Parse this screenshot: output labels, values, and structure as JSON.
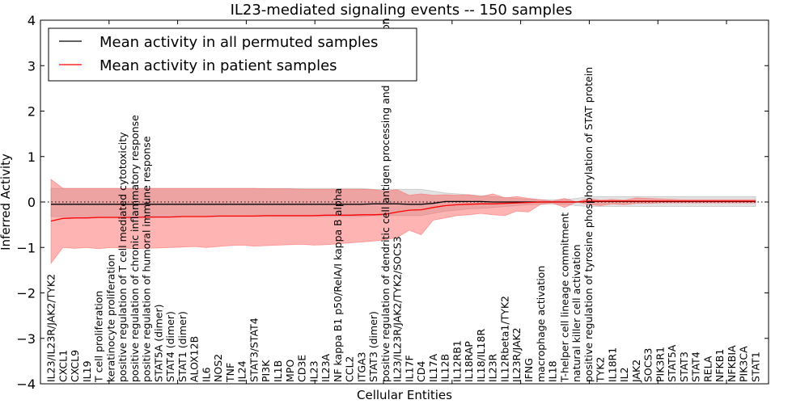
{
  "chart_data": {
    "type": "line",
    "title": "IL23-mediated signaling events -- 150 samples",
    "xlabel": "Cellular Entities",
    "ylabel": "Inferred Activity",
    "ylim": [
      -4,
      4
    ],
    "yticks": [
      -4,
      -3,
      -2,
      -1,
      0,
      1,
      2,
      3,
      4
    ],
    "legend": {
      "placement": "top-left",
      "entries": [
        {
          "label": "Mean activity in all permuted samples",
          "color": "#000000"
        },
        {
          "label": "Mean activity in patient samples",
          "color": "#ff0000"
        }
      ]
    },
    "categories": [
      "IL23/IL23R/JAK2/TYK2",
      "CXCL1",
      "CXCL9",
      "IL19",
      "T cell proliferation",
      "keratinocyte proliferation",
      "positive regulation of T cell mediated cytotoxicity",
      "positive regulation of chronic inflammatory response",
      "positive regulation of humoral immune response",
      "STAT5A (dimer)",
      "STAT4 (dimer)",
      "STAT1 (dimer)",
      "ALOX12B",
      "IL6",
      "NOS2",
      "TNF",
      "IL24",
      "STAT3/STAT4",
      "PI3K",
      "IL1B",
      "MPO",
      "CD3E",
      "IL23",
      "IL23A",
      "NF kappa B1 p50/RelA/I kappa B alpha",
      "CCL2",
      "ITGA3",
      "STAT3 (dimer)",
      "positive regulation of dendritic cell antigen processing and presentation",
      "IL23/IL23R/JAK2/TYK2/SOCS3",
      "IL17F",
      "CD4",
      "IL17A",
      "IL12B",
      "IL12RB1",
      "IL18RAP",
      "IL18/IL18R",
      "IL23R",
      "IL12Rbeta1/TYK2",
      "IL23R/JAK2",
      "IFNG",
      "macrophage activation",
      "IL18",
      "T-helper cell lineage commitment",
      "natural killer cell activation",
      "positive regulation of tyrosine phosphorylation of STAT protein",
      "TYK2",
      "IL18R1",
      "IL2",
      "JAK2",
      "SOCS3",
      "PIK3R1",
      "STAT5A",
      "STAT3",
      "STAT4",
      "RELA",
      "NFKB1",
      "NFKBIA",
      "PIK3CA",
      "STAT1"
    ],
    "series": [
      {
        "name": "Mean activity in all permuted samples",
        "color": "#000000",
        "values": [
          -0.05,
          -0.05,
          -0.05,
          -0.05,
          -0.05,
          -0.05,
          -0.05,
          -0.05,
          -0.05,
          -0.05,
          -0.05,
          -0.05,
          -0.05,
          -0.05,
          -0.05,
          -0.05,
          -0.05,
          -0.05,
          -0.05,
          -0.05,
          -0.05,
          -0.05,
          -0.05,
          -0.05,
          -0.05,
          -0.05,
          -0.05,
          -0.04,
          -0.04,
          -0.04,
          -0.05,
          -0.05,
          -0.03,
          0.01,
          0.01,
          0.01,
          0.01,
          0.0,
          0.0,
          0.0,
          0.0,
          0.0,
          0.0,
          0.0,
          0.0,
          0.01,
          0.01,
          0.01,
          0.01,
          0.01,
          0.01,
          0.01,
          0.01,
          0.01,
          0.01,
          0.01,
          0.01,
          0.01,
          0.01,
          0.01
        ],
        "band_lower": [
          -0.32,
          -0.32,
          -0.32,
          -0.32,
          -0.32,
          -0.32,
          -0.32,
          -0.32,
          -0.32,
          -0.32,
          -0.32,
          -0.32,
          -0.32,
          -0.32,
          -0.32,
          -0.32,
          -0.32,
          -0.32,
          -0.32,
          -0.32,
          -0.32,
          -0.32,
          -0.32,
          -0.32,
          -0.32,
          -0.32,
          -0.32,
          -0.3,
          -0.3,
          -0.3,
          -0.3,
          -0.3,
          -0.25,
          -0.2,
          -0.18,
          -0.15,
          -0.14,
          -0.12,
          -0.1,
          -0.08,
          -0.06,
          -0.05,
          -0.05,
          -0.05,
          -0.08,
          -0.1,
          -0.1,
          -0.1,
          -0.1,
          -0.1,
          -0.1,
          -0.1,
          -0.1,
          -0.1,
          -0.1,
          -0.1,
          -0.1,
          -0.1,
          -0.1,
          -0.1
        ],
        "band_upper": [
          0.3,
          0.3,
          0.3,
          0.3,
          0.3,
          0.3,
          0.3,
          0.3,
          0.3,
          0.3,
          0.3,
          0.3,
          0.3,
          0.3,
          0.3,
          0.3,
          0.3,
          0.3,
          0.3,
          0.3,
          0.3,
          0.3,
          0.3,
          0.3,
          0.3,
          0.3,
          0.3,
          0.28,
          0.28,
          0.28,
          0.28,
          0.28,
          0.24,
          0.2,
          0.18,
          0.16,
          0.14,
          0.12,
          0.1,
          0.08,
          0.06,
          0.05,
          0.05,
          0.05,
          0.08,
          0.12,
          0.12,
          0.12,
          0.12,
          0.12,
          0.12,
          0.12,
          0.12,
          0.12,
          0.12,
          0.12,
          0.12,
          0.12,
          0.12,
          0.12
        ]
      },
      {
        "name": "Mean activity in patient samples",
        "color": "#ff0000",
        "values": [
          -0.42,
          -0.36,
          -0.35,
          -0.35,
          -0.34,
          -0.34,
          -0.34,
          -0.34,
          -0.33,
          -0.33,
          -0.33,
          -0.32,
          -0.32,
          -0.32,
          -0.31,
          -0.31,
          -0.31,
          -0.31,
          -0.3,
          -0.3,
          -0.3,
          -0.3,
          -0.3,
          -0.29,
          -0.29,
          -0.29,
          -0.28,
          -0.28,
          -0.27,
          -0.22,
          -0.18,
          -0.17,
          -0.12,
          -0.08,
          -0.06,
          -0.05,
          -0.04,
          -0.04,
          -0.03,
          -0.02,
          -0.01,
          0.0,
          0.0,
          0.0,
          0.0,
          0.02,
          0.02,
          0.02,
          0.02,
          0.02,
          0.02,
          0.02,
          0.02,
          0.02,
          0.02,
          0.02,
          0.02,
          0.02,
          0.02,
          0.02
        ],
        "band_lower": [
          -1.35,
          -1.0,
          -1.02,
          -1.0,
          -1.03,
          -1.0,
          -1.01,
          -1.03,
          -1.02,
          -1.01,
          -1.0,
          -0.99,
          -0.98,
          -1.0,
          -0.98,
          -0.96,
          -0.95,
          -0.97,
          -0.96,
          -0.95,
          -0.94,
          -0.93,
          -0.95,
          -0.94,
          -0.92,
          -0.9,
          -0.88,
          -0.86,
          -0.83,
          -0.78,
          -0.62,
          -0.72,
          -0.4,
          -0.35,
          -0.3,
          -0.28,
          -0.25,
          -0.28,
          -0.3,
          -0.2,
          -0.22,
          -0.05,
          -0.02,
          -0.12,
          0.0,
          -0.05,
          -0.08,
          -0.04,
          -0.06,
          -0.03,
          -0.03,
          -0.02,
          -0.02,
          -0.02,
          -0.02,
          -0.02,
          -0.02,
          -0.02,
          -0.02,
          -0.02
        ],
        "band_upper": [
          0.5,
          0.3,
          0.3,
          0.3,
          0.3,
          0.3,
          0.3,
          0.3,
          0.3,
          0.3,
          0.3,
          0.3,
          0.3,
          0.3,
          0.3,
          0.3,
          0.3,
          0.3,
          0.29,
          0.29,
          0.29,
          0.28,
          0.28,
          0.28,
          0.28,
          0.28,
          0.28,
          0.27,
          0.24,
          0.27,
          0.15,
          0.18,
          0.15,
          0.16,
          0.15,
          0.16,
          0.12,
          0.18,
          0.09,
          0.12,
          0.08,
          0.05,
          0.02,
          0.08,
          0.0,
          0.08,
          0.04,
          0.06,
          0.04,
          0.09,
          0.08,
          0.07,
          0.06,
          0.05,
          0.05,
          0.05,
          0.05,
          0.05,
          0.05,
          0.05
        ]
      }
    ],
    "reference_line": {
      "y": 0,
      "style": "dotted"
    },
    "grid": false
  }
}
